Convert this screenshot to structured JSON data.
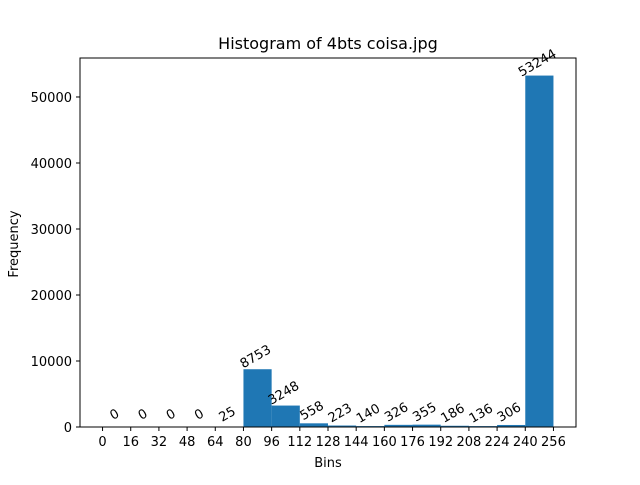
{
  "chart_data": {
    "type": "bar",
    "title": "Histogram of 4bts coisa.jpg",
    "xlabel": "Bins",
    "ylabel": "Frequency",
    "bin_edges": [
      0,
      16,
      32,
      48,
      64,
      80,
      96,
      112,
      128,
      144,
      160,
      176,
      192,
      208,
      224,
      240,
      256
    ],
    "values": [
      0,
      0,
      0,
      0,
      25,
      8753,
      3248,
      558,
      223,
      140,
      326,
      355,
      186,
      136,
      306,
      53244
    ],
    "data_labels": [
      "0",
      "0",
      "0",
      "0",
      "25",
      "8753",
      "3248",
      "558",
      "223",
      "140",
      "326",
      "355",
      "186",
      "136",
      "306",
      "53244"
    ],
    "xticks": [
      "0",
      "16",
      "32",
      "48",
      "64",
      "80",
      "96",
      "112",
      "128",
      "144",
      "160",
      "176",
      "192",
      "208",
      "224",
      "240",
      "256"
    ],
    "yticks": [
      0,
      10000,
      20000,
      30000,
      40000,
      50000
    ],
    "ytick_labels": [
      "0",
      "10000",
      "20000",
      "30000",
      "40000",
      "50000"
    ],
    "xlim": [
      -12.8,
      268.8
    ],
    "ylim": [
      0,
      55906
    ],
    "bar_color": "#1f77b4",
    "grid": false,
    "legend": "none"
  }
}
